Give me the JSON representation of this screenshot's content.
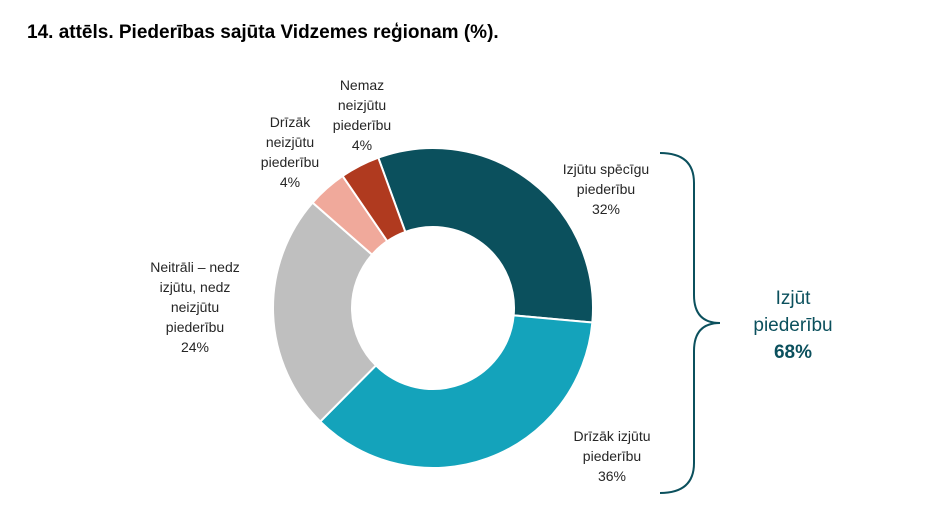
{
  "title": "14. attēls. Piederības sajūta Vidzemes reģionam (%).",
  "chart_data": {
    "type": "pie",
    "variant": "donut",
    "slices": [
      {
        "lines": [
          "Izjūtu spēcīgu",
          "piederību",
          "32%"
        ],
        "value": 32,
        "color": "#0b505d"
      },
      {
        "lines": [
          "Drīzāk izjūtu",
          "piederību",
          "36%"
        ],
        "value": 36,
        "color": "#14a3bb"
      },
      {
        "lines": [
          "Neitrāli – nedz",
          "izjūtu, nedz",
          "neizjūtu",
          "piederību",
          "24%"
        ],
        "value": 24,
        "color": "#bfbfbf"
      },
      {
        "lines": [
          "Drīzāk",
          "neizjūtu",
          "piederību",
          "4%"
        ],
        "value": 4,
        "color": "#f0a99b"
      },
      {
        "lines": [
          "Nemaz",
          "neizjūtu",
          "piederību",
          "4%"
        ],
        "value": 4,
        "color": "#b03a1f"
      }
    ],
    "annotation": {
      "line1": "Izjūt",
      "line2": "piederību",
      "value": "68%",
      "color": "#0b505d"
    }
  }
}
